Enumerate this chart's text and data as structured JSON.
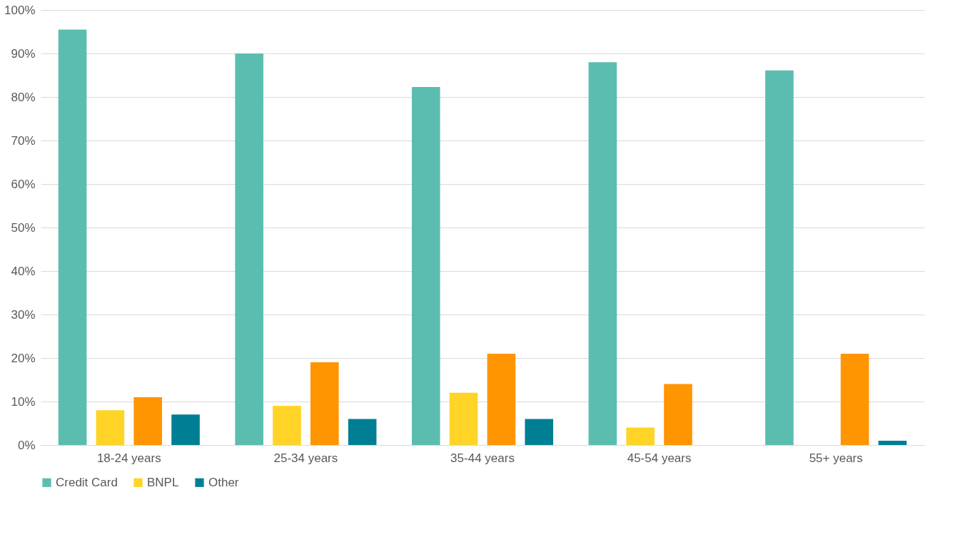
{
  "chart_data": {
    "type": "bar",
    "categories": [
      "18-24 years",
      "25-34 years",
      "35-44 years",
      "45-54 years",
      "55+ years"
    ],
    "series": [
      {
        "name": "Credit Card",
        "color": "#5bbdb0",
        "values": [
          95.5,
          90,
          82.3,
          88,
          86.1
        ]
      },
      {
        "name": "BNPL",
        "color": "#ffd426",
        "values": [
          8,
          9,
          12,
          4,
          0
        ]
      },
      {
        "color": "#ff9500",
        "values": [
          11,
          19,
          21,
          14,
          21
        ]
      },
      {
        "name": "Other",
        "color": "#007f94",
        "values": [
          7,
          6,
          6,
          0,
          1
        ]
      }
    ],
    "ylim": [
      0,
      100
    ],
    "yticks": [
      {
        "value": 0,
        "label": "0%"
      },
      {
        "value": 10,
        "label": "10%"
      },
      {
        "value": 20,
        "label": "20%"
      },
      {
        "value": 30,
        "label": "30%"
      },
      {
        "value": 40,
        "label": "40%"
      },
      {
        "value": 50,
        "label": "50%"
      },
      {
        "value": 60,
        "label": "60%"
      },
      {
        "value": 70,
        "label": "70%"
      },
      {
        "value": 80,
        "label": "80%"
      },
      {
        "value": 90,
        "label": "90%"
      },
      {
        "value": 100,
        "label": "100%"
      }
    ],
    "grid": "y",
    "legend": "bottom"
  }
}
